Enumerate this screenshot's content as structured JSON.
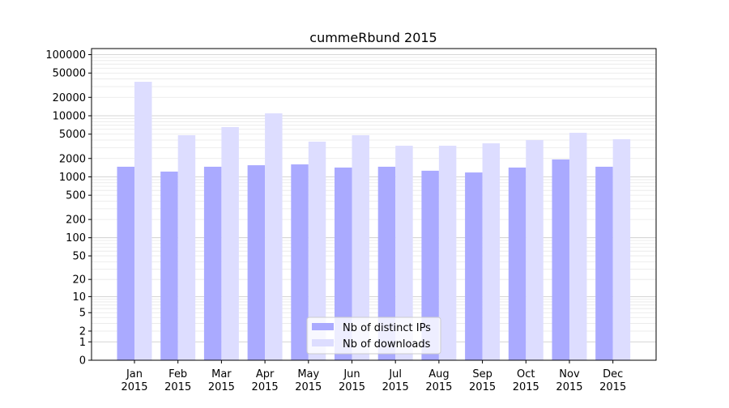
{
  "chart_data": {
    "type": "bar",
    "title": "cummeRbund 2015",
    "xlabel": "",
    "ylabel": "",
    "yscale": "log(1+y)",
    "ylim": [
      0,
      125000
    ],
    "yticks": [
      0,
      1,
      2,
      5,
      10,
      20,
      50,
      100,
      200,
      500,
      1000,
      2000,
      5000,
      10000,
      20000,
      50000,
      100000
    ],
    "grid": true,
    "legend_position": "bottom-center",
    "categories": [
      "Jan\n2015",
      "Feb\n2015",
      "Mar\n2015",
      "Apr\n2015",
      "May\n2015",
      "Jun\n2015",
      "Jul\n2015",
      "Aug\n2015",
      "Sep\n2015",
      "Oct\n2015",
      "Nov\n2015",
      "Dec\n2015"
    ],
    "series": [
      {
        "name": "Nb of distinct IPs",
        "color": "#aaaaff",
        "values": [
          1465,
          1220,
          1465,
          1550,
          1600,
          1420,
          1465,
          1260,
          1180,
          1420,
          1930,
          1465
        ]
      },
      {
        "name": "Nb of downloads",
        "color": "#ddddff",
        "values": [
          36000,
          4800,
          6530,
          10960,
          3770,
          4800,
          3230,
          3230,
          3540,
          4000,
          5260,
          4130
        ]
      }
    ]
  }
}
